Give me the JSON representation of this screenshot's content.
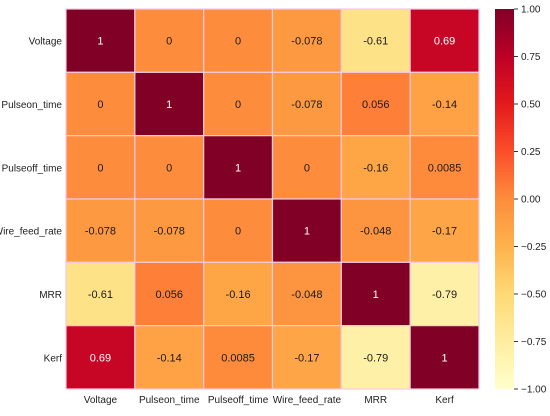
{
  "chart_data": {
    "type": "heatmap",
    "title": "",
    "xlabel": "",
    "ylabel": "",
    "rows": [
      "Voltage",
      "Pulseon_time",
      "Pulseoff_time",
      "Wire_feed_rate",
      "MRR",
      "Kerf"
    ],
    "columns": [
      "Voltage",
      "Pulseon_time",
      "Pulseoff_time",
      "Wire_feed_rate",
      "MRR",
      "Kerf"
    ],
    "values": [
      [
        1,
        0,
        0,
        -0.078,
        -0.61,
        0.69
      ],
      [
        0,
        1,
        0,
        -0.078,
        0.056,
        -0.14
      ],
      [
        0,
        0,
        1,
        0,
        -0.16,
        0.0085
      ],
      [
        -0.078,
        -0.078,
        0,
        1,
        -0.048,
        -0.17
      ],
      [
        -0.61,
        0.056,
        -0.16,
        -0.048,
        1,
        -0.79
      ],
      [
        0.69,
        -0.14,
        0.0085,
        -0.17,
        -0.79,
        1
      ]
    ],
    "cell_labels": [
      [
        "1",
        "0",
        "0",
        "-0.078",
        "-0.61",
        "0.69"
      ],
      [
        "0",
        "1",
        "0",
        "-0.078",
        "0.056",
        "-0.14"
      ],
      [
        "0",
        "0",
        "1",
        "0",
        "-0.16",
        "0.0085"
      ],
      [
        "-0.078",
        "-0.078",
        "0",
        "1",
        "-0.048",
        "-0.17"
      ],
      [
        "-0.61",
        "0.056",
        "-0.16",
        "-0.048",
        "1",
        "-0.79"
      ],
      [
        "0.69",
        "-0.14",
        "0.0085",
        "-0.17",
        "-0.79",
        "1"
      ]
    ],
    "colorbar": {
      "colormap": "YlOrRd",
      "range": [
        -1.0,
        1.0
      ],
      "ticks": [
        1.0,
        0.75,
        0.5,
        0.25,
        0.0,
        -0.25,
        -0.5,
        -0.75,
        -1.0
      ],
      "tick_labels": [
        "1.00",
        "0.75",
        "0.50",
        "0.25",
        "0.00",
        "−0.25",
        "−0.50",
        "−0.75",
        "−1.00"
      ],
      "stops": [
        "#ffffcc",
        "#ffeda0",
        "#fed976",
        "#feb24c",
        "#fd8d3c",
        "#fc4e2a",
        "#e31a1c",
        "#bd0026",
        "#800026"
      ]
    },
    "grid_line_color": "#f7c9e0"
  }
}
